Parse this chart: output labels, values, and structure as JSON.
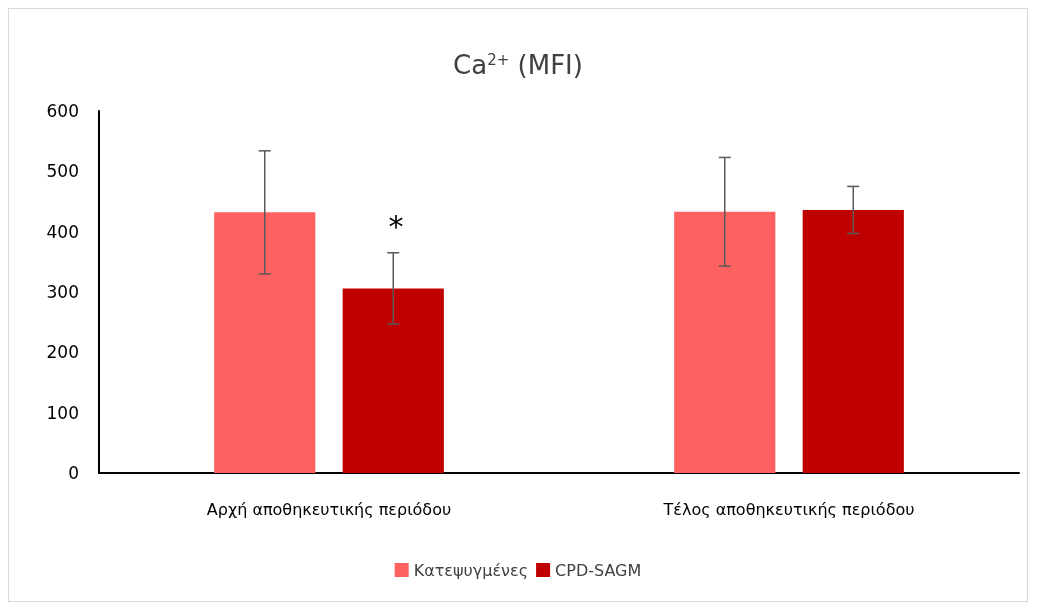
{
  "chart_data": {
    "type": "bar",
    "title": "Ca$^{2+}$ (MFI)",
    "categories": [
      "Αρχή αποθηκευτικής περιόδου",
      "Τέλος αποθηκευτικής περιόδου"
    ],
    "series": [
      {
        "name": "Κατεψυγμένες",
        "color": "#ff6161",
        "values": [
          432,
          433
        ],
        "errors": [
          102,
          90
        ]
      },
      {
        "name": "CPD-SAGM",
        "color": "#c00000",
        "values": [
          306,
          436
        ],
        "errors": [
          59,
          39
        ]
      }
    ],
    "ylim": [
      0,
      600
    ],
    "yticks": [
      0,
      100,
      200,
      300,
      400,
      500,
      600
    ],
    "grid": false,
    "legend": "bottom",
    "annotations": [
      "*"
    ]
  }
}
